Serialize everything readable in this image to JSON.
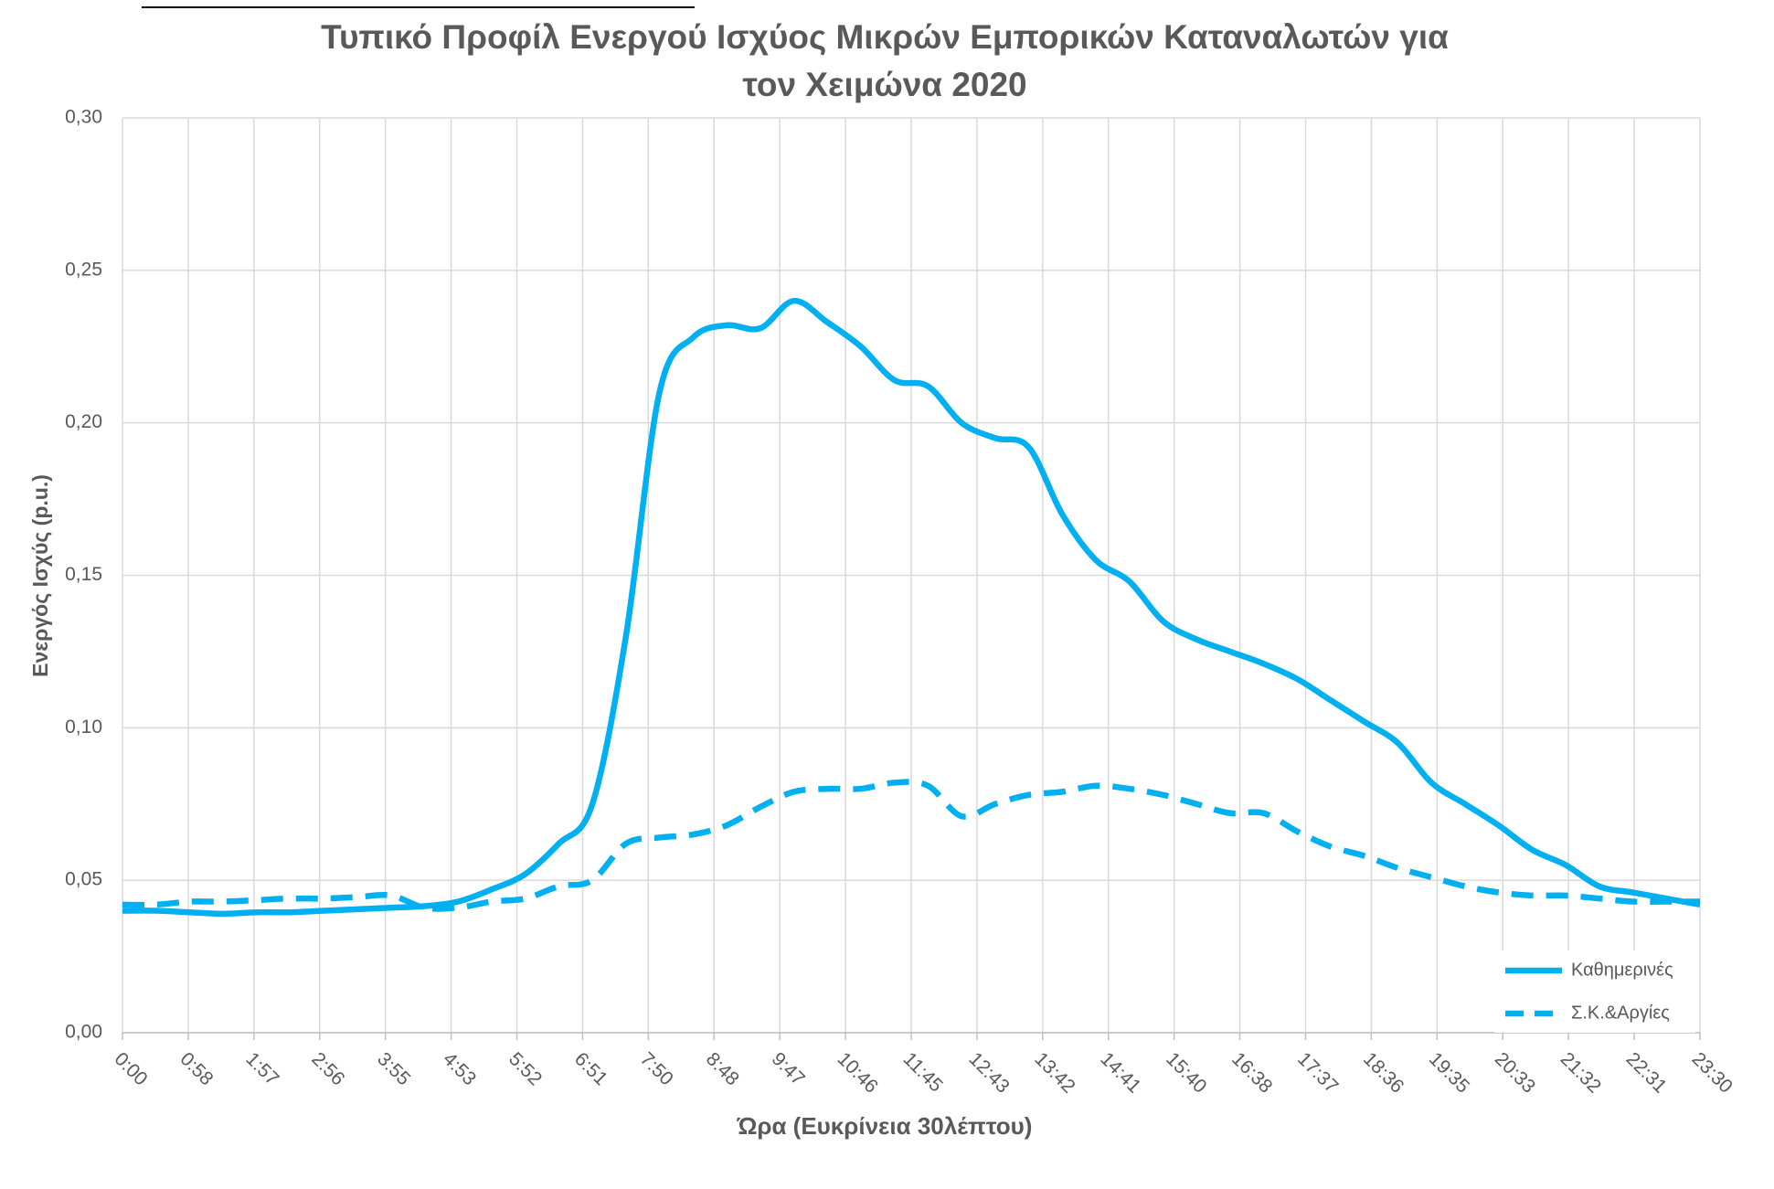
{
  "chart_data": {
    "type": "line",
    "title": "Τυπικό Προφίλ Ενεργού Ισχύος Μικρών Εμπορικών Καταναλωτών για τον Χειμώνα 2020",
    "xlabel": "Ώρα (Ευκρίνεια 30λέπτου)",
    "ylabel": "Ενεργός Ισχύς (p.u.)",
    "x": [
      0,
      30,
      60,
      90,
      120,
      150,
      180,
      210,
      240,
      270,
      300,
      330,
      360,
      390,
      420,
      450,
      480,
      510,
      540,
      570,
      600,
      630,
      660,
      690,
      720,
      750,
      780,
      810,
      840,
      870,
      900,
      930,
      960,
      990,
      1020,
      1050,
      1080,
      1110,
      1140,
      1170,
      1200,
      1230,
      1260,
      1290,
      1320,
      1350,
      1380,
      1410
    ],
    "series": [
      {
        "name": "Καθημερινές",
        "color": "#00b0f0",
        "dash": false,
        "values": [
          0.04,
          0.04,
          0.0395,
          0.039,
          0.0395,
          0.0395,
          0.04,
          0.0405,
          0.041,
          0.0415,
          0.043,
          0.047,
          0.052,
          0.062,
          0.075,
          0.13,
          0.21,
          0.228,
          0.232,
          0.231,
          0.24,
          0.233,
          0.225,
          0.214,
          0.212,
          0.2,
          0.195,
          0.192,
          0.17,
          0.155,
          0.148,
          0.135,
          0.129,
          0.125,
          0.121,
          0.116,
          0.109,
          0.102,
          0.095,
          0.082,
          0.075,
          0.068,
          0.06,
          0.055,
          0.048,
          0.046,
          0.044,
          0.042
        ]
      },
      {
        "name": "Σ.Κ.&Αργίες",
        "color": "#00b0f0",
        "dash": true,
        "values": [
          0.042,
          0.042,
          0.043,
          0.043,
          0.0435,
          0.044,
          0.044,
          0.0445,
          0.045,
          0.041,
          0.041,
          0.043,
          0.044,
          0.048,
          0.05,
          0.062,
          0.064,
          0.065,
          0.068,
          0.074,
          0.079,
          0.08,
          0.08,
          0.082,
          0.081,
          0.071,
          0.075,
          0.078,
          0.079,
          0.081,
          0.08,
          0.078,
          0.075,
          0.072,
          0.072,
          0.066,
          0.061,
          0.058,
          0.054,
          0.051,
          0.048,
          0.046,
          0.045,
          0.045,
          0.044,
          0.043,
          0.043,
          0.043
        ]
      }
    ],
    "xlim": [
      0,
      1410
    ],
    "xticks": [
      {
        "value": 0,
        "label": "0:00"
      },
      {
        "value": 58.75,
        "label": "0:58"
      },
      {
        "value": 117.5,
        "label": "1:57"
      },
      {
        "value": 176.25,
        "label": "2:56"
      },
      {
        "value": 235,
        "label": "3:55"
      },
      {
        "value": 293.75,
        "label": "4:53"
      },
      {
        "value": 352.5,
        "label": "5:52"
      },
      {
        "value": 411.25,
        "label": "6:51"
      },
      {
        "value": 470,
        "label": "7:50"
      },
      {
        "value": 528.75,
        "label": "8:48"
      },
      {
        "value": 587.5,
        "label": "9:47"
      },
      {
        "value": 646.25,
        "label": "10:46"
      },
      {
        "value": 705,
        "label": "11:45"
      },
      {
        "value": 763.75,
        "label": "12:43"
      },
      {
        "value": 822.5,
        "label": "13:42"
      },
      {
        "value": 881.25,
        "label": "14:41"
      },
      {
        "value": 940,
        "label": "15:40"
      },
      {
        "value": 998.75,
        "label": "16:38"
      },
      {
        "value": 1057.5,
        "label": "17:37"
      },
      {
        "value": 1116.25,
        "label": "18:36"
      },
      {
        "value": 1175,
        "label": "19:35"
      },
      {
        "value": 1233.75,
        "label": "20:33"
      },
      {
        "value": 1292.5,
        "label": "21:32"
      },
      {
        "value": 1351.25,
        "label": "22:31"
      },
      {
        "value": 1410,
        "label": "23:30"
      }
    ],
    "ylim": [
      0,
      0.3
    ],
    "yticks": [
      {
        "value": 0,
        "label": "0,00"
      },
      {
        "value": 0.05,
        "label": "0,05"
      },
      {
        "value": 0.1,
        "label": "0,10"
      },
      {
        "value": 0.15,
        "label": "0,15"
      },
      {
        "value": 0.2,
        "label": "0,20"
      },
      {
        "value": 0.25,
        "label": "0,25"
      },
      {
        "value": 0.3,
        "label": "0,30"
      }
    ],
    "grid": true,
    "legend": "lower right"
  }
}
